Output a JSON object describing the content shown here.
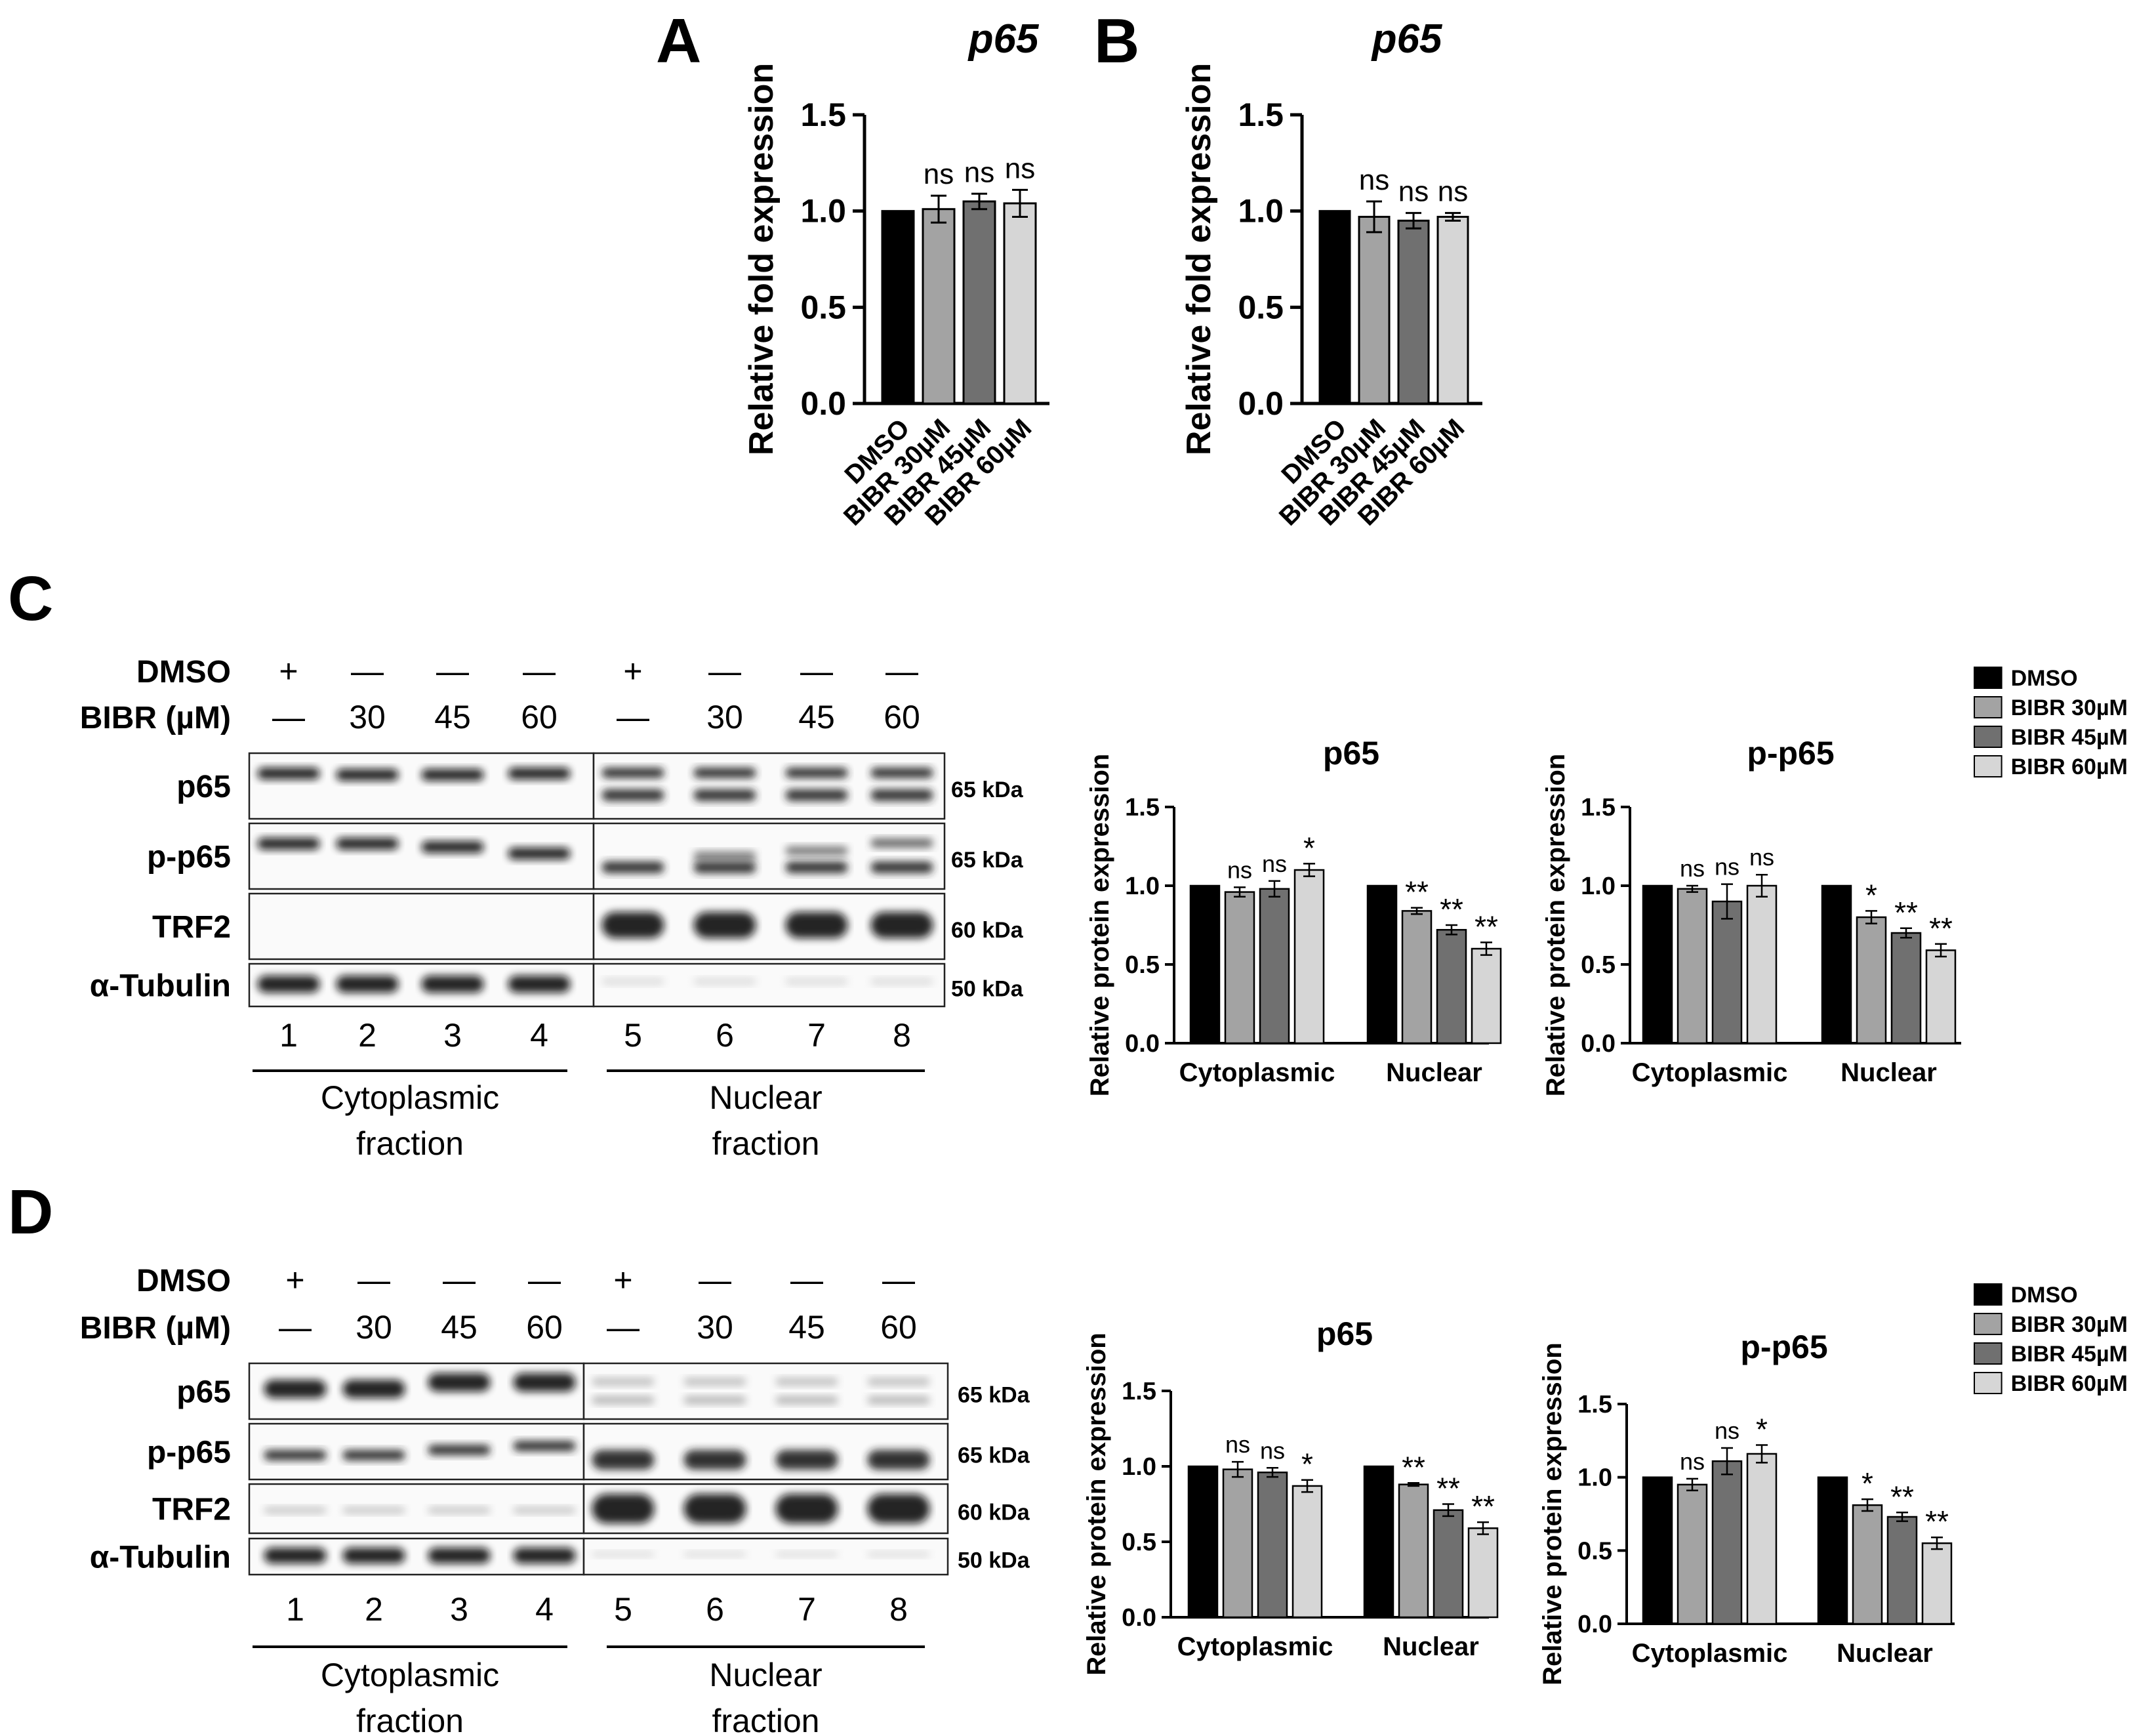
{
  "panels": {
    "A": "A",
    "B": "B",
    "C": "C",
    "D": "D"
  },
  "colors": {
    "DMSO": "#000000",
    "BIBR 30µM": "#a3a3a3",
    "BIBR 45µM": "#707070",
    "BIBR 60µM": "#d6d6d6"
  },
  "chart_data": [
    {
      "id": "A",
      "type": "bar",
      "title": "p65",
      "ylabel": "Relative fold expression",
      "ylim": [
        0,
        1.5
      ],
      "yticks": [
        "0.0",
        "0.5",
        "1.0",
        "1.5"
      ],
      "categories": [
        "DMSO",
        "BIBR 30µM",
        "BIBR 45µM",
        "BIBR 60µM"
      ],
      "values": [
        1.0,
        1.01,
        1.05,
        1.04
      ],
      "errors": [
        0,
        0.07,
        0.04,
        0.07
      ],
      "significance": [
        "",
        "ns",
        "ns",
        "ns"
      ]
    },
    {
      "id": "B",
      "type": "bar",
      "title": "p65",
      "ylabel": "Relative fold expression",
      "ylim": [
        0,
        1.5
      ],
      "yticks": [
        "0.0",
        "0.5",
        "1.0",
        "1.5"
      ],
      "categories": [
        "DMSO",
        "BIBR 30µM",
        "BIBR 45µM",
        "BIBR 60µM"
      ],
      "values": [
        1.0,
        0.97,
        0.95,
        0.97
      ],
      "errors": [
        0,
        0.08,
        0.04,
        0.02
      ],
      "significance": [
        "",
        "ns",
        "ns",
        "ns"
      ]
    },
    {
      "id": "C-p65",
      "type": "bar",
      "title": "p65",
      "ylabel": "Relative protein expression",
      "ylim": [
        0,
        1.5
      ],
      "yticks": [
        "0.0",
        "0.5",
        "1.0",
        "1.5"
      ],
      "categories": [
        "Cytoplasmic",
        "Nuclear"
      ],
      "series": [
        {
          "name": "DMSO",
          "values": [
            1.0,
            1.0
          ],
          "errors": [
            0,
            0
          ],
          "significance": [
            "",
            ""
          ]
        },
        {
          "name": "BIBR 30µM",
          "values": [
            0.96,
            0.84
          ],
          "errors": [
            0.03,
            0.02
          ],
          "significance": [
            "ns",
            "**"
          ]
        },
        {
          "name": "BIBR 45µM",
          "values": [
            0.98,
            0.72
          ],
          "errors": [
            0.05,
            0.03
          ],
          "significance": [
            "ns",
            "**"
          ]
        },
        {
          "name": "BIBR 60µM",
          "values": [
            1.1,
            0.6
          ],
          "errors": [
            0.04,
            0.04
          ],
          "significance": [
            "*",
            "**"
          ]
        }
      ]
    },
    {
      "id": "C-p-p65",
      "type": "bar",
      "title": "p-p65",
      "ylabel": "Relative protein expression",
      "ylim": [
        0,
        1.5
      ],
      "yticks": [
        "0.0",
        "0.5",
        "1.0",
        "1.5"
      ],
      "categories": [
        "Cytoplasmic",
        "Nuclear"
      ],
      "series": [
        {
          "name": "DMSO",
          "values": [
            1.0,
            1.0
          ],
          "errors": [
            0,
            0
          ],
          "significance": [
            "",
            ""
          ]
        },
        {
          "name": "BIBR 30µM",
          "values": [
            0.98,
            0.8
          ],
          "errors": [
            0.02,
            0.04
          ],
          "significance": [
            "ns",
            "*"
          ]
        },
        {
          "name": "BIBR 45µM",
          "values": [
            0.9,
            0.7
          ],
          "errors": [
            0.11,
            0.03
          ],
          "significance": [
            "ns",
            "**"
          ]
        },
        {
          "name": "BIBR 60µM",
          "values": [
            1.0,
            0.59
          ],
          "errors": [
            0.07,
            0.04
          ],
          "significance": [
            "ns",
            "**"
          ]
        }
      ]
    },
    {
      "id": "D-p65",
      "type": "bar",
      "title": "p65",
      "ylabel": "Relative protein expression",
      "ylim": [
        0,
        1.5
      ],
      "yticks": [
        "0.0",
        "0.5",
        "1.0",
        "1.5"
      ],
      "categories": [
        "Cytoplasmic",
        "Nuclear"
      ],
      "series": [
        {
          "name": "DMSO",
          "values": [
            1.0,
            1.0
          ],
          "errors": [
            0,
            0
          ],
          "significance": [
            "",
            ""
          ]
        },
        {
          "name": "BIBR 30µM",
          "values": [
            0.98,
            0.88
          ],
          "errors": [
            0.05,
            0.01
          ],
          "significance": [
            "ns",
            "**"
          ]
        },
        {
          "name": "BIBR 45µM",
          "values": [
            0.96,
            0.71
          ],
          "errors": [
            0.03,
            0.04
          ],
          "significance": [
            "ns",
            "**"
          ]
        },
        {
          "name": "BIBR 60µM",
          "values": [
            0.87,
            0.59
          ],
          "errors": [
            0.04,
            0.04
          ],
          "significance": [
            "*",
            "**"
          ]
        }
      ]
    },
    {
      "id": "D-p-p65",
      "type": "bar",
      "title": "p-p65",
      "ylabel": "Relative protein expression",
      "ylim": [
        0,
        1.5
      ],
      "yticks": [
        "0.0",
        "0.5",
        "1.0",
        "1.5"
      ],
      "categories": [
        "Cytoplasmic",
        "Nuclear"
      ],
      "series": [
        {
          "name": "DMSO",
          "values": [
            1.0,
            1.0
          ],
          "errors": [
            0,
            0
          ],
          "significance": [
            "",
            ""
          ]
        },
        {
          "name": "BIBR 30µM",
          "values": [
            0.95,
            0.81
          ],
          "errors": [
            0.04,
            0.04
          ],
          "significance": [
            "ns",
            "*"
          ]
        },
        {
          "name": "BIBR 45µM",
          "values": [
            1.11,
            0.73
          ],
          "errors": [
            0.09,
            0.03
          ],
          "significance": [
            "ns",
            "**"
          ]
        },
        {
          "name": "BIBR 60µM",
          "values": [
            1.16,
            0.55
          ],
          "errors": [
            0.06,
            0.04
          ],
          "significance": [
            "*",
            "**"
          ]
        }
      ]
    }
  ],
  "legend": [
    "DMSO",
    "BIBR 30µM",
    "BIBR 45µM",
    "BIBR 60µM"
  ],
  "blots": [
    {
      "id": "C",
      "row_labels": [
        "DMSO",
        "BIBR (µM)"
      ],
      "dmso_marks": [
        "+",
        "—",
        "—",
        "—",
        "+",
        "—",
        "—",
        "—"
      ],
      "bibr_marks": [
        "—",
        "30",
        "45",
        "60",
        "—",
        "30",
        "45",
        "60"
      ],
      "bands": [
        {
          "label": "p65",
          "kda": "65 kDa"
        },
        {
          "label": "p-p65",
          "kda": "65 kDa"
        },
        {
          "label": "TRF2",
          "kda": "60 kDa"
        },
        {
          "label": "α-Tubulin",
          "kda": "50 kDa"
        }
      ],
      "lanes": [
        "1",
        "2",
        "3",
        "4",
        "5",
        "6",
        "7",
        "8"
      ],
      "fractions": [
        [
          "Cytoplasmic",
          "fraction"
        ],
        [
          "Nuclear",
          "fraction"
        ]
      ]
    },
    {
      "id": "D",
      "row_labels": [
        "DMSO",
        "BIBR (µM)"
      ],
      "dmso_marks": [
        "+",
        "—",
        "—",
        "—",
        "+",
        "—",
        "—",
        "—"
      ],
      "bibr_marks": [
        "—",
        "30",
        "45",
        "60",
        "—",
        "30",
        "45",
        "60"
      ],
      "bands": [
        {
          "label": "p65",
          "kda": "65 kDa"
        },
        {
          "label": "p-p65",
          "kda": "65 kDa"
        },
        {
          "label": "TRF2",
          "kda": "60 kDa"
        },
        {
          "label": "α-Tubulin",
          "kda": "50 kDa"
        }
      ],
      "lanes": [
        "1",
        "2",
        "3",
        "4",
        "5",
        "6",
        "7",
        "8"
      ],
      "fractions": [
        [
          "Cytoplasmic",
          "fraction"
        ],
        [
          "Nuclear",
          "fraction"
        ]
      ]
    }
  ]
}
